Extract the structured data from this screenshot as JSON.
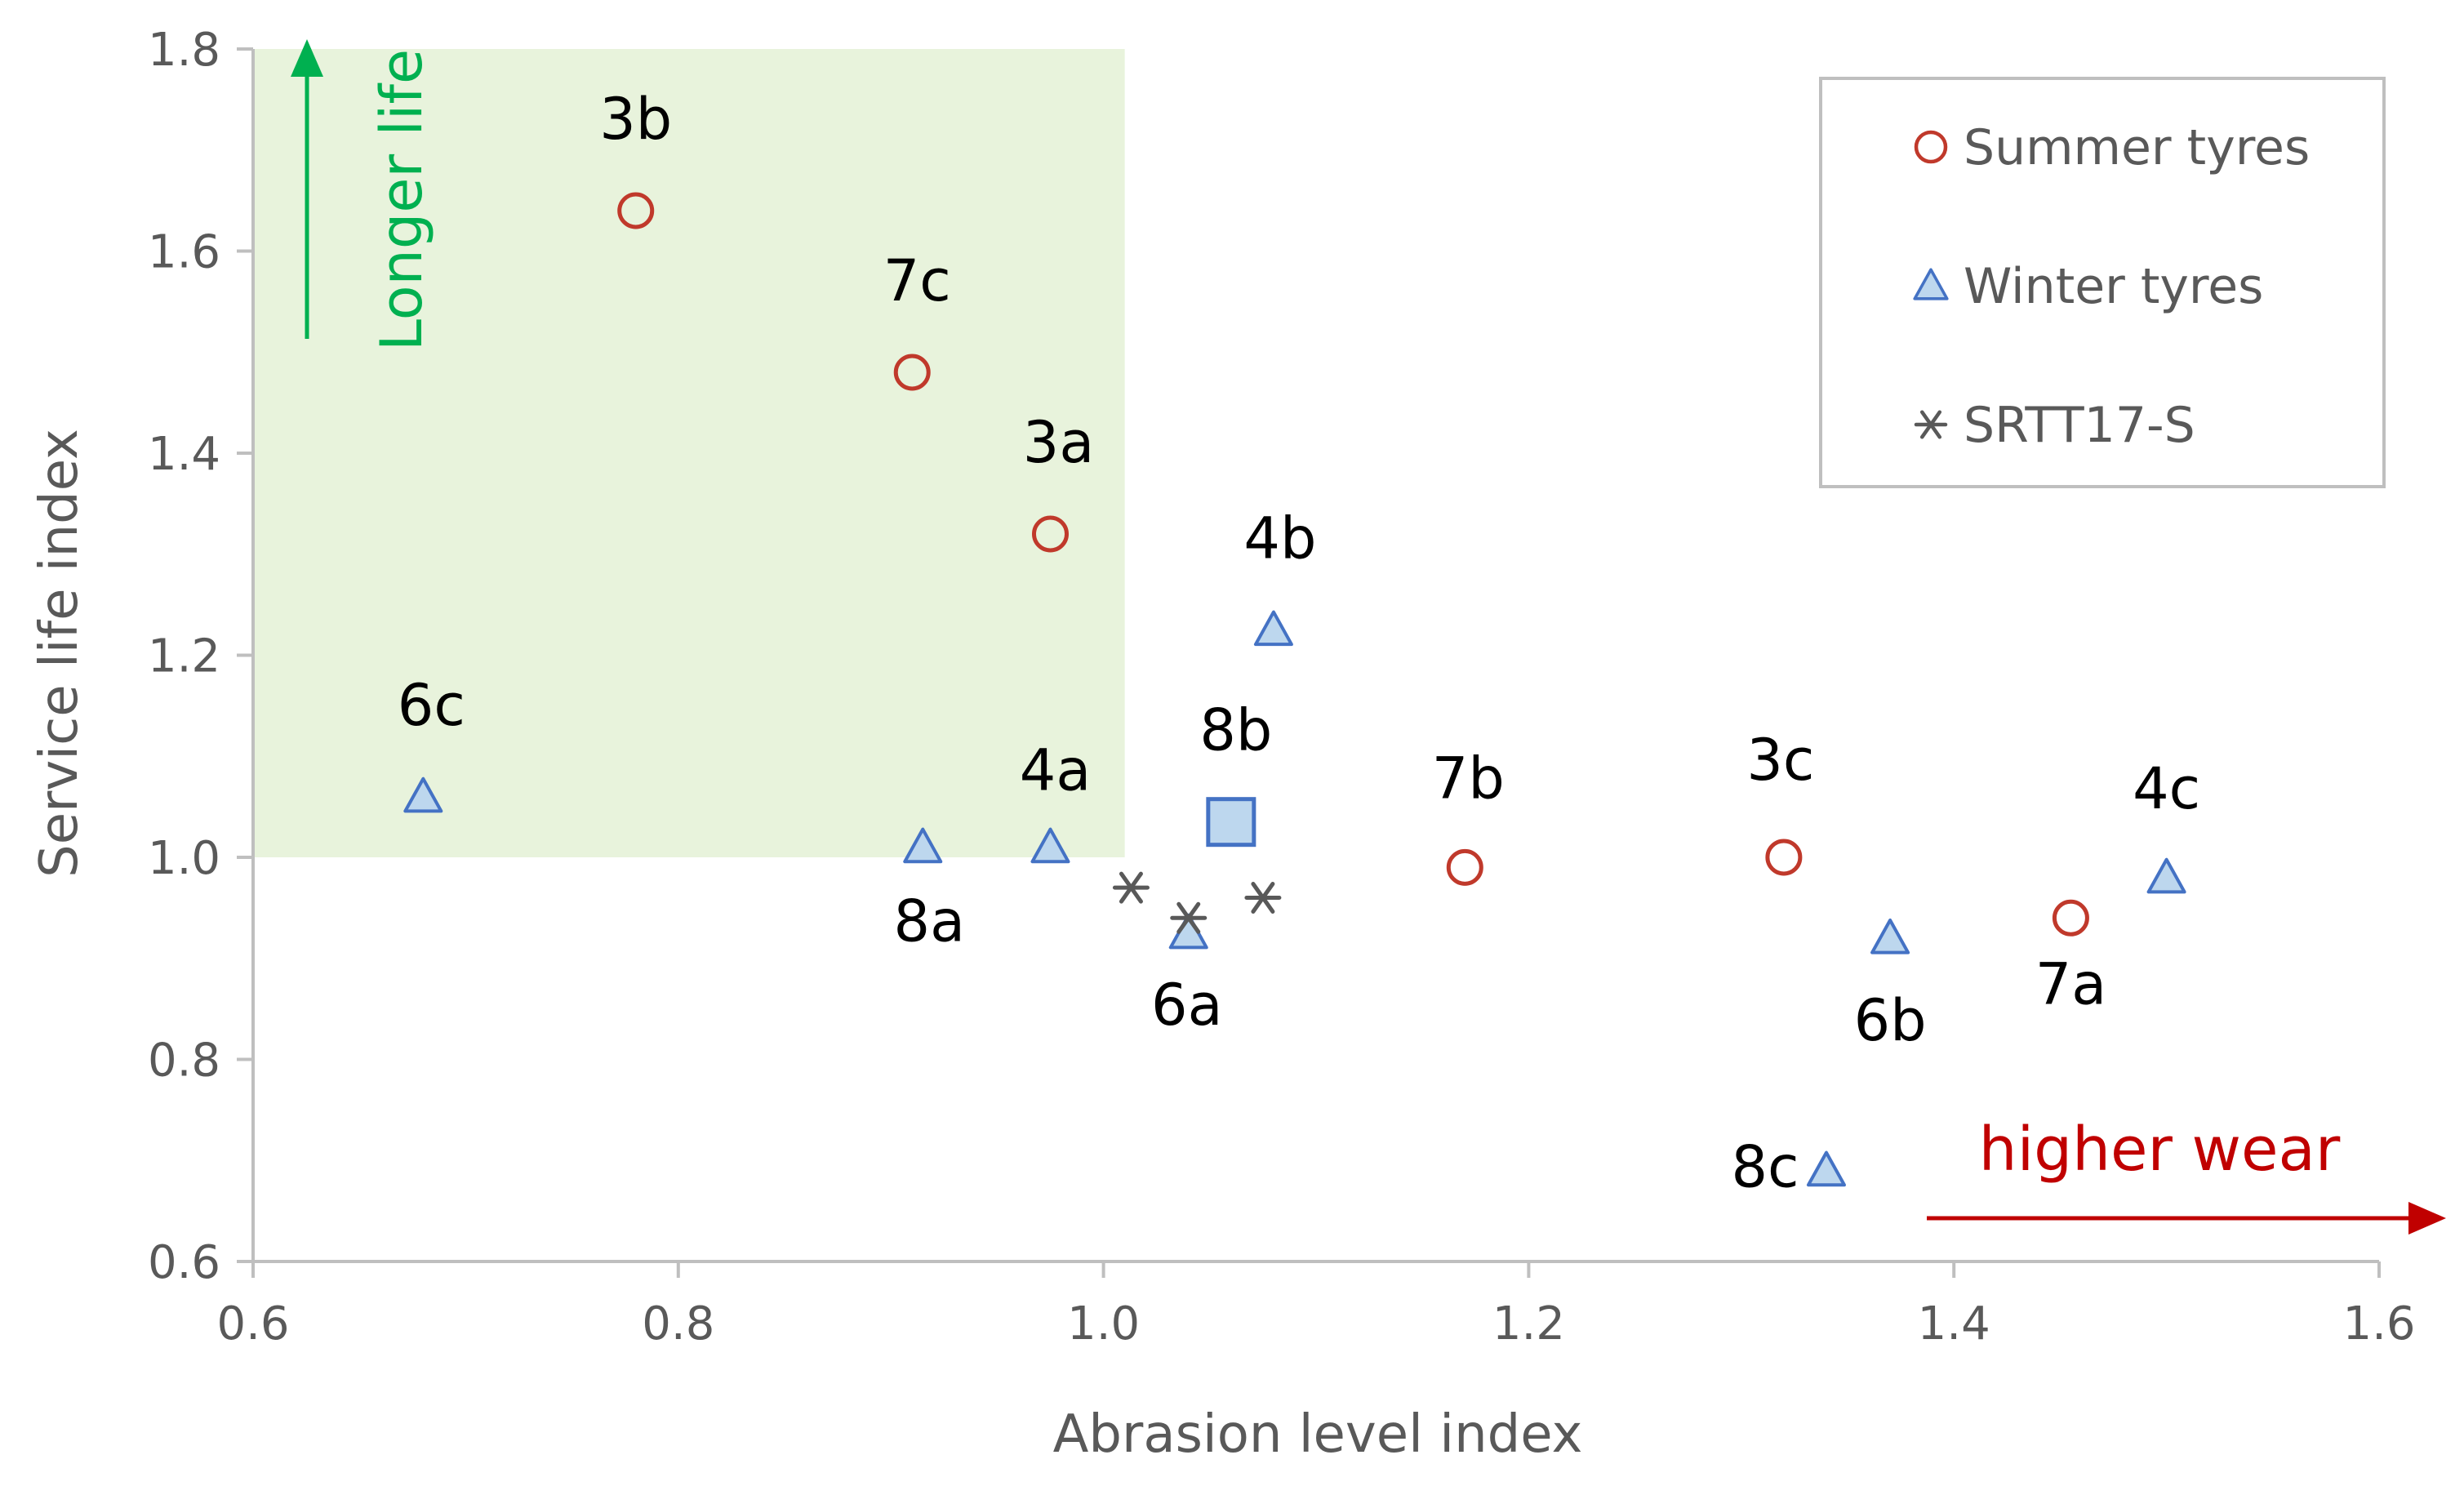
{
  "chart_data": {
    "type": "scatter",
    "xlabel": "Abrasion level index",
    "ylabel": "Service life index",
    "xlim": [
      0.6,
      1.6
    ],
    "ylim": [
      0.6,
      1.8
    ],
    "x_ticks": [
      "0.6",
      "0.8",
      "1.0",
      "1.2",
      "1.4",
      "1.6"
    ],
    "y_ticks": [
      "0.6",
      "0.8",
      "1.0",
      "1.2",
      "1.4",
      "1.6",
      "1.8"
    ],
    "grid": false,
    "legend_position": "top-right",
    "highlight_region": {
      "x": [
        0.6,
        1.01
      ],
      "y": [
        1.0,
        1.8
      ],
      "color": "#e8f3dc"
    },
    "series": [
      {
        "name": "Summer tyres",
        "marker": "circle",
        "color": "#c0392b",
        "points": [
          {
            "label": "3b",
            "x": 0.78,
            "y": 1.64
          },
          {
            "label": "7c",
            "x": 0.91,
            "y": 1.48
          },
          {
            "label": "3a",
            "x": 0.975,
            "y": 1.32
          },
          {
            "label": "7b",
            "x": 1.17,
            "y": 0.99
          },
          {
            "label": "3c",
            "x": 1.32,
            "y": 1.0
          },
          {
            "label": "7a",
            "x": 1.455,
            "y": 0.94
          }
        ]
      },
      {
        "name": "Winter tyres",
        "marker": "triangle",
        "color": "#4472c4",
        "points": [
          {
            "label": "6c",
            "x": 0.68,
            "y": 1.06
          },
          {
            "label": "8a",
            "x": 0.915,
            "y": 1.01
          },
          {
            "label": "4a",
            "x": 0.975,
            "y": 1.01
          },
          {
            "label": "6a",
            "x": 1.04,
            "y": 0.925
          },
          {
            "label": "4b",
            "x": 1.08,
            "y": 1.225
          },
          {
            "label": "6b",
            "x": 1.37,
            "y": 0.92
          },
          {
            "label": "4c",
            "x": 1.5,
            "y": 0.98
          },
          {
            "label": "8c",
            "x": 1.34,
            "y": 0.69
          }
        ]
      },
      {
        "name": "SRTT17-S",
        "marker": "asterisk",
        "color": "#595959",
        "points": [
          {
            "x": 1.013,
            "y": 0.97
          },
          {
            "x": 1.04,
            "y": 0.94
          },
          {
            "x": 1.075,
            "y": 0.96
          }
        ]
      }
    ],
    "special_points": [
      {
        "label": "8b",
        "x": 1.06,
        "y": 1.035,
        "marker": "square",
        "color": "#4472c4",
        "fill": "#bdd7ee"
      }
    ],
    "annotations": [
      {
        "text": "Longer life",
        "color": "#00b050",
        "direction": "up"
      },
      {
        "text": "higher wear",
        "color": "#c00000",
        "direction": "right"
      }
    ]
  }
}
